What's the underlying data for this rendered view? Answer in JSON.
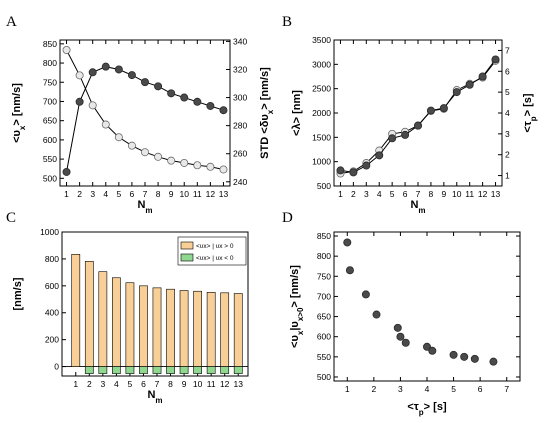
{
  "figure": {
    "panels": [
      {
        "letter": "A"
      },
      {
        "letter": "B"
      },
      {
        "letter": "C"
      },
      {
        "letter": "D"
      }
    ]
  },
  "colors": {
    "series_dark": "#4a4a4a",
    "series_light": "#e8e8e8",
    "bar_positive": "#f9cf98",
    "bar_negative": "#90d890",
    "axis": "#000000"
  },
  "chart_data": [
    {
      "panel": "A",
      "type": "line",
      "x": [
        1,
        2,
        3,
        4,
        5,
        6,
        7,
        8,
        9,
        10,
        11,
        12,
        13
      ],
      "xlabel_main": "N",
      "xlabel_sub": "m",
      "xlim": [
        0.5,
        13.5
      ],
      "x_ticks": [
        1,
        2,
        3,
        4,
        5,
        6,
        7,
        8,
        9,
        10,
        11,
        12,
        13
      ],
      "ylabel_left": "<υx> [nm/s]",
      "ylim_left": [
        480,
        860
      ],
      "y_ticks_left": [
        500,
        550,
        600,
        650,
        700,
        750,
        800,
        850
      ],
      "ylabel_right": "STD <δυx> [nm/s]",
      "ylim_right": [
        237,
        341
      ],
      "y_ticks_right": [
        240,
        260,
        280,
        300,
        320,
        340
      ],
      "series": [
        {
          "axis": "left",
          "marker": "open-light",
          "values": [
            834,
            768,
            690,
            640,
            607,
            585,
            568,
            556,
            546,
            540,
            534,
            530,
            523
          ]
        },
        {
          "axis": "right",
          "marker": "filled-dark",
          "values": [
            247,
            297,
            318,
            322,
            320,
            316,
            311,
            308,
            303,
            300,
            297,
            294,
            291
          ]
        }
      ]
    },
    {
      "panel": "B",
      "type": "line",
      "x": [
        1,
        2,
        3,
        4,
        5,
        6,
        7,
        8,
        9,
        10,
        11,
        12,
        13
      ],
      "xlabel_main": "N",
      "xlabel_sub": "m",
      "xlim": [
        0.5,
        13.5
      ],
      "x_ticks": [
        1,
        2,
        3,
        4,
        5,
        6,
        7,
        8,
        9,
        10,
        11,
        12,
        13
      ],
      "ylabel_left": "<λ> [nm]",
      "ylim_left": [
        500,
        3500
      ],
      "y_ticks_left": [
        500,
        1000,
        1500,
        2000,
        2500,
        3000,
        3500
      ],
      "ylabel_right": "<τp> [s]",
      "ylim_right": [
        0.5,
        7.5
      ],
      "y_ticks_right": [
        1,
        2,
        3,
        4,
        5,
        6,
        7
      ],
      "series": [
        {
          "axis": "left",
          "marker": "filled-dark",
          "values": [
            820,
            780,
            920,
            1130,
            1480,
            1550,
            1740,
            2050,
            2100,
            2430,
            2580,
            2750,
            3100
          ]
        },
        {
          "axis": "right",
          "marker": "open-light",
          "values": [
            1.1,
            1.2,
            1.6,
            2.2,
            3.0,
            3.1,
            3.4,
            4.1,
            4.2,
            5.1,
            5.4,
            5.7,
            6.5
          ]
        }
      ]
    },
    {
      "panel": "C",
      "type": "bar",
      "categories": [
        1,
        2,
        3,
        4,
        5,
        6,
        7,
        8,
        9,
        10,
        11,
        12,
        13
      ],
      "xlabel_main": "N",
      "xlabel_sub": "m",
      "ylabel": "[nm/s]",
      "ylim": [
        -70,
        1000
      ],
      "y_ticks": [
        0,
        200,
        400,
        600,
        800,
        1000
      ],
      "series": [
        {
          "legend": "<υx> | υx > 0",
          "color_key": "bar_positive",
          "values": [
            834,
            782,
            705,
            660,
            623,
            600,
            585,
            575,
            565,
            560,
            552,
            548,
            543
          ]
        },
        {
          "legend": "<υx> | υx < 0",
          "color_key": "bar_negative",
          "values": [
            0,
            -52,
            -52,
            -52,
            -52,
            -52,
            -52,
            -52,
            -52,
            -52,
            -52,
            -52,
            -52
          ]
        }
      ],
      "legend_position": "top-right"
    },
    {
      "panel": "D",
      "type": "scatter",
      "xlabel": "<τp> [s]",
      "ylabel": "<υx|υx>0> [nm/s]",
      "xlim": [
        0.5,
        7.5
      ],
      "ylim": [
        490,
        860
      ],
      "x_ticks": [
        1,
        2,
        3,
        4,
        5,
        6,
        7
      ],
      "y_ticks": [
        500,
        550,
        600,
        650,
        700,
        750,
        800,
        850
      ],
      "points": [
        {
          "x": 1.0,
          "y": 834
        },
        {
          "x": 1.1,
          "y": 765
        },
        {
          "x": 1.7,
          "y": 705
        },
        {
          "x": 2.1,
          "y": 655
        },
        {
          "x": 2.9,
          "y": 622
        },
        {
          "x": 3.0,
          "y": 600
        },
        {
          "x": 3.2,
          "y": 585
        },
        {
          "x": 4.0,
          "y": 575
        },
        {
          "x": 4.2,
          "y": 565
        },
        {
          "x": 5.0,
          "y": 555
        },
        {
          "x": 5.4,
          "y": 550
        },
        {
          "x": 5.8,
          "y": 545
        },
        {
          "x": 6.5,
          "y": 538
        }
      ]
    }
  ]
}
